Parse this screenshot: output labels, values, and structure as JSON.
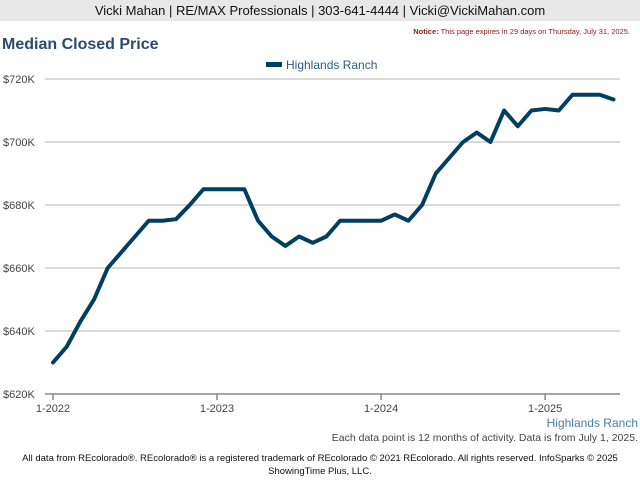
{
  "header": {
    "contact": "Vicki Mahan | RE/MAX Professionals | 303-641-4444 | Vicki@VickiMahan.com"
  },
  "notice": {
    "label": "Notice:",
    "text": "This page expires in 29 days on Thursday, July 31, 2025."
  },
  "footer": {
    "data_note": "Each data point is 12 months of activity. Data is from July 1, 2025.",
    "copyright_line1": "All data from REcolorado®. REcolorado® is a registered trademark of REcolorado © 2021 REcolorado. All rights reserved. InfoSparks © 2025",
    "copyright_line2": "ShowingTime Plus, LLC."
  },
  "chart_data": {
    "type": "line",
    "title": "Median Closed Price",
    "xlabel": "",
    "ylabel": "",
    "ylim": [
      620000,
      720000
    ],
    "y_ticks": [
      620000,
      640000,
      660000,
      680000,
      700000,
      720000
    ],
    "y_tick_labels": [
      "$620K",
      "$640K",
      "$660K",
      "$680K",
      "$700K",
      "$720K"
    ],
    "x_tick_labels": [
      "1-2022",
      "1-2023",
      "1-2024",
      "1-2025"
    ],
    "x_tick_indices": [
      0,
      12,
      24,
      36
    ],
    "x_start": "1-2022",
    "x_end": "6-2025",
    "grid": true,
    "legend_position": "top-center",
    "series": [
      {
        "name": "Highlands Ranch",
        "color": "#003f5f",
        "values": [
          630000,
          635000,
          643000,
          650000,
          660000,
          665000,
          670000,
          675000,
          675000,
          675500,
          680000,
          685000,
          685000,
          685000,
          685000,
          675000,
          670000,
          667000,
          670000,
          668000,
          670000,
          675000,
          675000,
          675000,
          675000,
          677000,
          675000,
          680000,
          690000,
          695000,
          700000,
          703000,
          700000,
          710000,
          705000,
          710000,
          710500,
          710000,
          715000,
          715000,
          715000,
          713500
        ]
      }
    ],
    "x_axis_series_label": "Highlands Ranch"
  }
}
